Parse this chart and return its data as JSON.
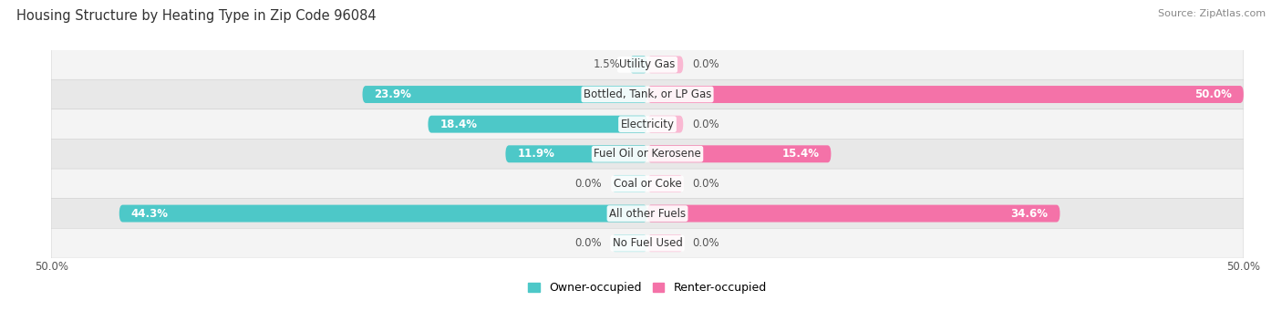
{
  "title": "Housing Structure by Heating Type in Zip Code 96084",
  "source": "Source: ZipAtlas.com",
  "categories": [
    "Utility Gas",
    "Bottled, Tank, or LP Gas",
    "Electricity",
    "Fuel Oil or Kerosene",
    "Coal or Coke",
    "All other Fuels",
    "No Fuel Used"
  ],
  "owner_values": [
    1.5,
    23.9,
    18.4,
    11.9,
    0.0,
    44.3,
    0.0
  ],
  "renter_values": [
    0.0,
    50.0,
    0.0,
    15.4,
    0.0,
    34.6,
    0.0
  ],
  "owner_color": "#4dc8c8",
  "renter_color": "#f472a8",
  "owner_color_light": "#a8e4e4",
  "renter_color_light": "#f9b8d2",
  "row_bg_light": "#f4f4f4",
  "row_bg_dark": "#e8e8e8",
  "title_fontsize": 10.5,
  "source_fontsize": 8,
  "label_fontsize": 8.5,
  "cat_fontsize": 8.5,
  "axis_max": 50.0,
  "background_color": "#ffffff",
  "stub_size": 3.0
}
